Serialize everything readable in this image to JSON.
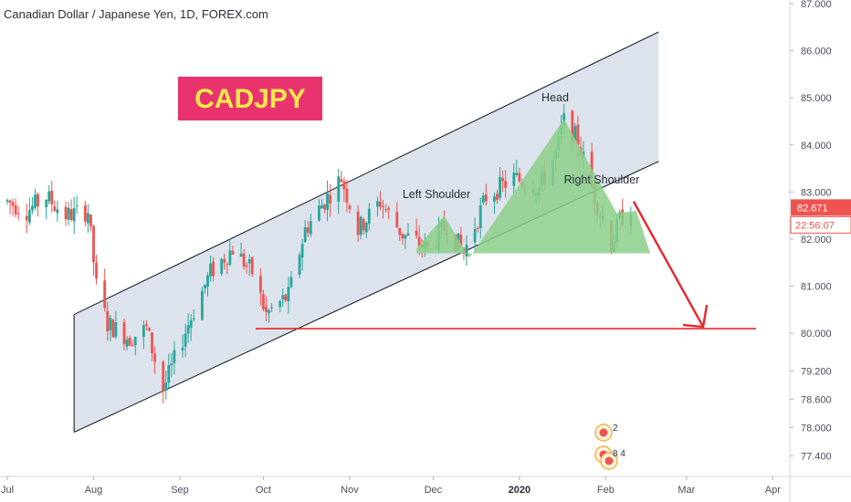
{
  "chart_data": {
    "type": "candlestick",
    "title": "Canadian Dollar / Japanese Yen, 1D, FOREX.com",
    "symbol_badge": "CADJPY",
    "y_axis": {
      "ticks": [
        "87.000",
        "86.000",
        "85.000",
        "84.000",
        "83.000",
        "82.000",
        "81.000",
        "80.000",
        "79.200",
        "78.600",
        "78.000",
        "77.400"
      ],
      "ylim": [
        77.1,
        87.1
      ],
      "last_price": "82.671",
      "countdown": "22:56:07"
    },
    "x_axis": {
      "ticks": [
        "Jul",
        "Aug",
        "Sep",
        "Oct",
        "Nov",
        "Dec",
        "2020",
        "Feb",
        "Mar",
        "Apr"
      ]
    },
    "annotations": {
      "head": "Head",
      "left_shoulder": "Left Shoulder",
      "right_shoulder": "Right Shoulder",
      "support_level": 80.1,
      "arrow_target": 80.1
    },
    "channel": {
      "upper_start": {
        "date": "2019-07-25",
        "price": 80.4
      },
      "upper_end": {
        "date": "2020-02-20",
        "price": 86.4
      },
      "lower_start": {
        "date": "2019-07-25",
        "price": 77.9
      },
      "lower_end": {
        "date": "2020-02-20",
        "price": 83.65
      }
    },
    "price_path": [
      {
        "date": "2019-07-01",
        "price": 82.8
      },
      {
        "date": "2019-07-08",
        "price": 82.6
      },
      {
        "date": "2019-07-15",
        "price": 82.9
      },
      {
        "date": "2019-07-22",
        "price": 82.5
      },
      {
        "date": "2019-07-30",
        "price": 82.6
      },
      {
        "date": "2019-08-02",
        "price": 81.0
      },
      {
        "date": "2019-08-06",
        "price": 80.2
      },
      {
        "date": "2019-08-14",
        "price": 79.9
      },
      {
        "date": "2019-08-20",
        "price": 80.1
      },
      {
        "date": "2019-08-26",
        "price": 78.8
      },
      {
        "date": "2019-09-04",
        "price": 80.2
      },
      {
        "date": "2019-09-12",
        "price": 81.3
      },
      {
        "date": "2019-09-20",
        "price": 81.8
      },
      {
        "date": "2019-09-27",
        "price": 81.3
      },
      {
        "date": "2019-10-02",
        "price": 80.4
      },
      {
        "date": "2019-10-10",
        "price": 80.8
      },
      {
        "date": "2019-10-16",
        "price": 82.2
      },
      {
        "date": "2019-10-24",
        "price": 82.9
      },
      {
        "date": "2019-10-29",
        "price": 83.3
      },
      {
        "date": "2019-11-04",
        "price": 82.2
      },
      {
        "date": "2019-11-12",
        "price": 82.8
      },
      {
        "date": "2019-11-20",
        "price": 82.1
      },
      {
        "date": "2019-11-29",
        "price": 81.8
      },
      {
        "date": "2019-12-06",
        "price": 82.3
      },
      {
        "date": "2019-12-12",
        "price": 81.7
      },
      {
        "date": "2019-12-20",
        "price": 82.9
      },
      {
        "date": "2019-12-30",
        "price": 83.3
      },
      {
        "date": "2020-01-08",
        "price": 83.1
      },
      {
        "date": "2020-01-14",
        "price": 83.8
      },
      {
        "date": "2020-01-17",
        "price": 84.5
      },
      {
        "date": "2020-01-22",
        "price": 84.1
      },
      {
        "date": "2020-01-28",
        "price": 82.9
      },
      {
        "date": "2020-02-03",
        "price": 81.9
      },
      {
        "date": "2020-02-06",
        "price": 82.4
      },
      {
        "date": "2020-02-10",
        "price": 82.7
      }
    ],
    "colors": {
      "up": "#26a69a",
      "down": "#ef5350",
      "channel_fill": "#d6dee9",
      "pattern_fill": "#8ccf8a",
      "support_line": "#e8262b",
      "badge_bg": "#e8336f",
      "badge_text": "#f7e94a",
      "price_label": "#ef5350"
    },
    "event_markers": [
      {
        "label": "2"
      },
      {
        "label": "8 4"
      }
    ]
  }
}
